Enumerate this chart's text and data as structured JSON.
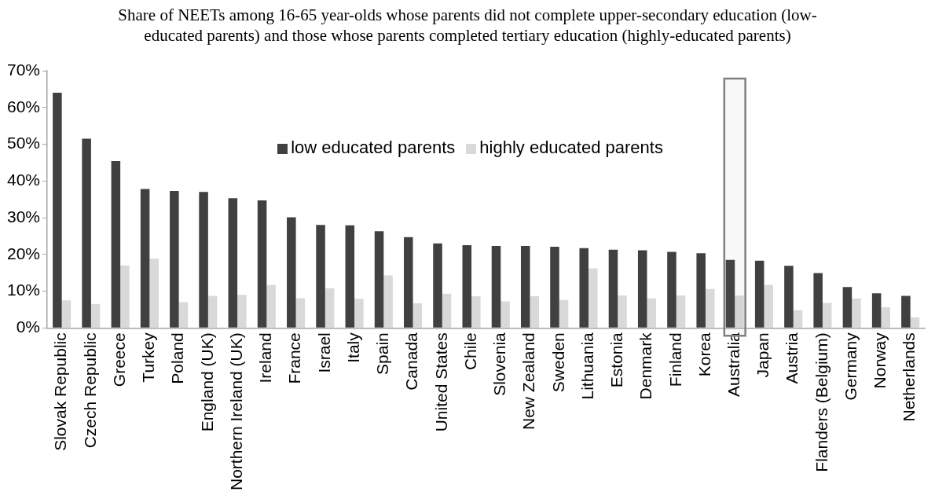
{
  "chart_data": {
    "type": "bar",
    "title": "Share of NEETs among 16-65 year-olds whose parents did not complete upper-secondary education (low-educated parents) and those whose parents completed tertiary education (highly-educated parents)",
    "categories": [
      "Slovak Republic",
      "Czech Republic",
      "Greece",
      "Turkey",
      "Poland",
      "England (UK)",
      "Northern Ireland (UK)",
      "Ireland",
      "France",
      "Israel",
      "Italy",
      "Spain",
      "Canada",
      "United States",
      "Chile",
      "Slovenia",
      "New Zealand",
      "Sweden",
      "Lithuania",
      "Estonia",
      "Denmark",
      "Finland",
      "Korea",
      "Australia",
      "Japan",
      "Austria",
      "Flanders (Belgium)",
      "Germany",
      "Norway",
      "Netherlands"
    ],
    "series": [
      {
        "name": "low educated parents",
        "color": "#404040",
        "values": [
          64,
          51.5,
          45.4,
          37.8,
          37.3,
          37,
          35.3,
          34.7,
          30.1,
          28,
          27.9,
          26.3,
          24.7,
          23,
          22.5,
          22.3,
          22.3,
          22.1,
          21.7,
          21.3,
          21.1,
          20.7,
          20.3,
          18.5,
          18.3,
          16.9,
          14.9,
          11.1,
          9.4,
          8.7
        ]
      },
      {
        "name": "highly educated parents",
        "color": "#d9d9d9",
        "values": [
          7.5,
          6.5,
          17,
          18.8,
          7,
          8.7,
          9,
          11.7,
          8.1,
          10.8,
          7.9,
          14.3,
          6.7,
          9.3,
          8.6,
          7.2,
          8.6,
          7.6,
          16.2,
          8.8,
          8,
          8.8,
          10.6,
          8.8,
          11.7,
          4.8,
          6.8,
          8,
          5.6,
          2.9
        ]
      }
    ],
    "ylim": [
      0,
      70
    ],
    "yticks": [
      {
        "value": 0,
        "label": "0%"
      },
      {
        "value": 10,
        "label": "10%"
      },
      {
        "value": 20,
        "label": "20%"
      },
      {
        "value": 30,
        "label": "30%"
      },
      {
        "value": 40,
        "label": "40%"
      },
      {
        "value": 50,
        "label": "50%"
      },
      {
        "value": 60,
        "label": "60%"
      },
      {
        "value": 70,
        "label": "70%"
      }
    ],
    "bands": [
      {
        "axis": "x",
        "from": "Australia",
        "to": "Australia",
        "color": "#808080"
      }
    ],
    "grid": false,
    "legend": "top"
  }
}
